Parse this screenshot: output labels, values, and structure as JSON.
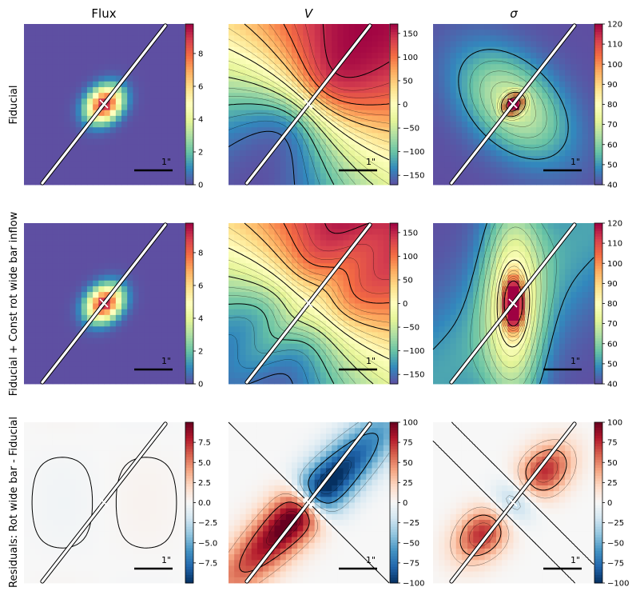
{
  "chart_data": {
    "type": "heatmap",
    "columns": [
      {
        "title": "Flux",
        "italic": false
      },
      {
        "title": "V",
        "italic": true
      },
      {
        "title": "σ",
        "italic": true
      }
    ],
    "rows": [
      {
        "label": "Fiducial"
      },
      {
        "label": "Fiducial + Const rot wide bar inflow"
      },
      {
        "label": "Residuals: Rot wide bar - Fiducial"
      }
    ],
    "scale_bar_label": "1\"",
    "panels": [
      {
        "id": "fiducial-flux",
        "row": 0,
        "col": 0,
        "kind": "flux",
        "colormap": "Spectral_r",
        "clim": [
          0,
          9.8
        ],
        "ticks": [
          "8",
          "6",
          "4",
          "2",
          "0"
        ],
        "tick_values": [
          8,
          6,
          4,
          2,
          0
        ]
      },
      {
        "id": "fiducial-velocity",
        "row": 0,
        "col": 1,
        "kind": "velocity",
        "colormap": "Spectral_r",
        "clim": [
          -170,
          170
        ],
        "ticks": [
          "150",
          "100",
          "50",
          "0",
          "−50",
          "−100",
          "−150"
        ],
        "tick_values": [
          150,
          100,
          50,
          0,
          -50,
          -100,
          -150
        ]
      },
      {
        "id": "fiducial-dispersion",
        "row": 0,
        "col": 2,
        "kind": "dispersion",
        "colormap": "Spectral_r",
        "clim": [
          40,
          120
        ],
        "ticks": [
          "120",
          "110",
          "100",
          "90",
          "80",
          "70",
          "60",
          "50",
          "40"
        ],
        "tick_values": [
          120,
          110,
          100,
          90,
          80,
          70,
          60,
          50,
          40
        ]
      },
      {
        "id": "inflow-flux",
        "row": 1,
        "col": 0,
        "kind": "flux",
        "colormap": "Spectral_r",
        "clim": [
          0,
          9.8
        ],
        "ticks": [
          "8",
          "6",
          "4",
          "2",
          "0"
        ],
        "tick_values": [
          8,
          6,
          4,
          2,
          0
        ]
      },
      {
        "id": "inflow-velocity",
        "row": 1,
        "col": 1,
        "kind": "velocity2",
        "colormap": "Spectral_r",
        "clim": [
          -170,
          170
        ],
        "ticks": [
          "150",
          "100",
          "50",
          "0",
          "−50",
          "−100",
          "−150"
        ],
        "tick_values": [
          150,
          100,
          50,
          0,
          -50,
          -100,
          -150
        ]
      },
      {
        "id": "inflow-dispersion",
        "row": 1,
        "col": 2,
        "kind": "dispersion2",
        "colormap": "Spectral_r",
        "clim": [
          40,
          120
        ],
        "ticks": [
          "120",
          "110",
          "100",
          "90",
          "80",
          "70",
          "60",
          "50",
          "40"
        ],
        "tick_values": [
          120,
          110,
          100,
          90,
          80,
          70,
          60,
          50,
          40
        ]
      },
      {
        "id": "residual-flux",
        "row": 2,
        "col": 0,
        "kind": "resflux",
        "colormap": "RdBu_r",
        "clim": [
          -10,
          10
        ],
        "ticks": [
          "7.5",
          "5.0",
          "2.5",
          "0.0",
          "−2.5",
          "−5.0",
          "−7.5"
        ],
        "tick_values": [
          7.5,
          5,
          2.5,
          0,
          -2.5,
          -5,
          -7.5
        ]
      },
      {
        "id": "residual-velocity",
        "row": 2,
        "col": 1,
        "kind": "resvel",
        "colormap": "RdBu_r",
        "clim": [
          -100,
          100
        ],
        "ticks": [
          "100",
          "75",
          "50",
          "25",
          "0",
          "−25",
          "−50",
          "−75",
          "−100"
        ],
        "tick_values": [
          100,
          75,
          50,
          25,
          0,
          -25,
          -50,
          -75,
          -100
        ]
      },
      {
        "id": "residual-dispersion",
        "row": 2,
        "col": 2,
        "kind": "resdisp",
        "colormap": "RdBu_r",
        "clim": [
          -100,
          100
        ],
        "ticks": [
          "100",
          "75",
          "50",
          "25",
          "0",
          "−25",
          "−50",
          "−75",
          "−100"
        ],
        "tick_values": [
          100,
          75,
          50,
          25,
          0,
          -25,
          -50,
          -75,
          -100
        ]
      }
    ]
  }
}
